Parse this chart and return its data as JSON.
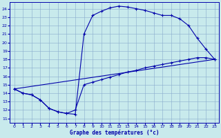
{
  "title": "Graphe des températures (°c)",
  "bg_color": "#c8eaec",
  "line_color": "#0000aa",
  "grid_color": "#88aacc",
  "xlim": [
    -0.5,
    23.5
  ],
  "ylim": [
    10.5,
    24.8
  ],
  "xticks": [
    0,
    1,
    2,
    3,
    4,
    5,
    6,
    7,
    8,
    9,
    10,
    11,
    12,
    13,
    14,
    15,
    16,
    17,
    18,
    19,
    20,
    21,
    22,
    23
  ],
  "yticks": [
    11,
    12,
    13,
    14,
    15,
    16,
    17,
    18,
    19,
    20,
    21,
    22,
    23,
    24
  ],
  "line1_x": [
    0,
    1,
    2,
    3,
    4,
    5,
    6,
    7,
    8,
    9,
    10,
    11,
    12,
    13,
    14,
    15,
    16,
    17,
    18,
    19,
    20,
    21,
    22,
    23
  ],
  "line1_y": [
    14.5,
    14.0,
    13.8,
    13.2,
    12.2,
    11.8,
    11.6,
    11.5,
    21.0,
    23.2,
    23.7,
    24.1,
    24.3,
    24.2,
    24.0,
    23.8,
    23.5,
    23.2,
    23.2,
    22.8,
    22.0,
    20.5,
    19.2,
    18.0
  ],
  "line2_x": [
    0,
    1,
    2,
    3,
    4,
    5,
    6,
    7,
    8,
    9,
    10,
    11,
    12,
    13,
    14,
    15,
    16,
    17,
    18,
    19,
    20,
    21,
    22,
    23
  ],
  "line2_y": [
    14.5,
    14.0,
    13.8,
    13.2,
    12.2,
    11.8,
    11.6,
    12.0,
    15.0,
    15.3,
    15.6,
    15.9,
    16.2,
    16.5,
    16.7,
    17.0,
    17.2,
    17.4,
    17.6,
    17.8,
    18.0,
    18.2,
    18.2,
    18.0
  ],
  "line3_x": [
    0,
    23
  ],
  "line3_y": [
    14.5,
    18.0
  ]
}
